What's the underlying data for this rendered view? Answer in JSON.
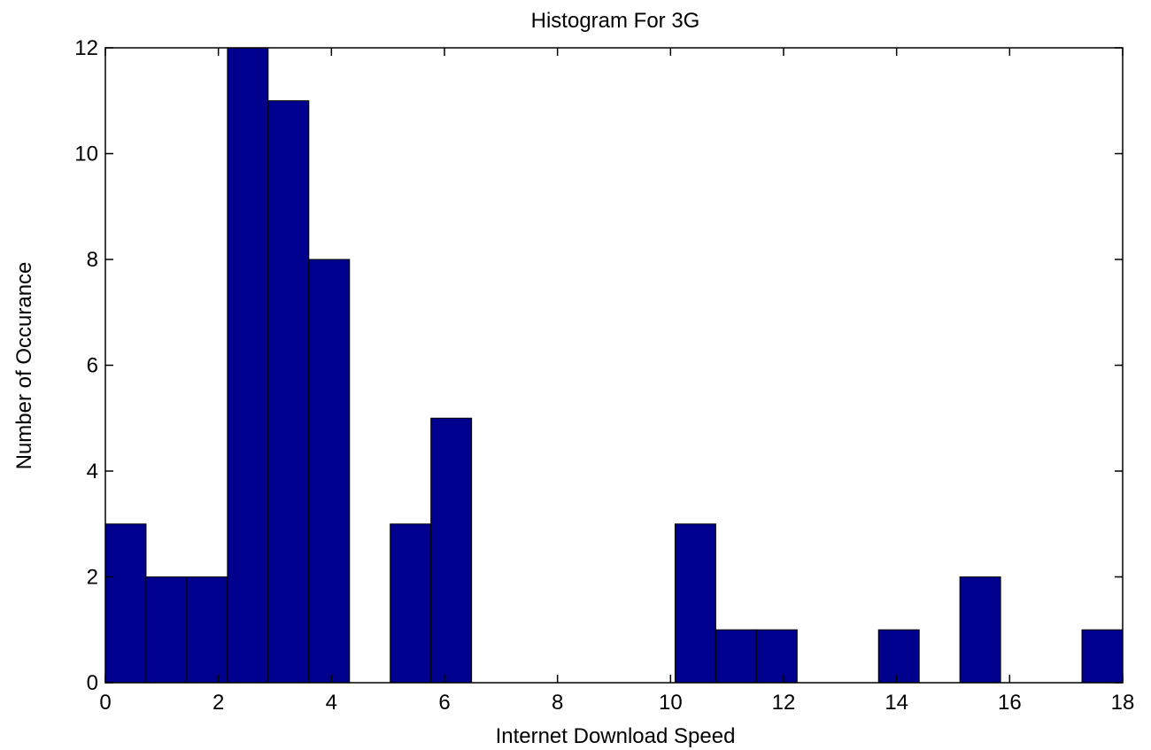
{
  "chart_data": {
    "type": "bar",
    "title": "Histogram For 3G",
    "xlabel": "Internet Download Speed",
    "ylabel": "Number of Occurance",
    "xlim": [
      0,
      18
    ],
    "ylim": [
      0,
      12
    ],
    "x_ticks": [
      0,
      2,
      4,
      6,
      8,
      10,
      12,
      14,
      16,
      18
    ],
    "y_ticks": [
      0,
      2,
      4,
      6,
      8,
      10,
      12
    ],
    "bin_start": 0.0,
    "bin_width": 0.72,
    "counts": [
      3,
      2,
      2,
      12,
      11,
      8,
      0,
      3,
      5,
      0,
      0,
      0,
      0,
      0,
      3,
      1,
      1,
      0,
      0,
      1,
      0,
      2,
      0,
      0,
      1
    ],
    "bar_color": "#00008F",
    "grid": false
  }
}
